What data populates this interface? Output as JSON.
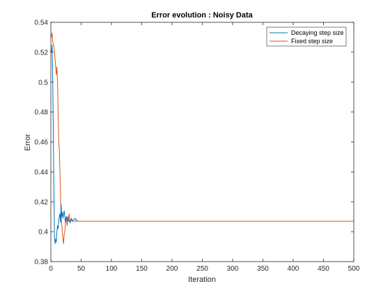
{
  "chart_data": {
    "type": "line",
    "title": "Error evolution : Noisy Data",
    "xlabel": "Iteration",
    "ylabel": "Error",
    "xlim": [
      0,
      500
    ],
    "ylim": [
      0.38,
      0.54
    ],
    "xticks": [
      0,
      50,
      100,
      150,
      200,
      250,
      300,
      350,
      400,
      450,
      500
    ],
    "yticks": [
      0.38,
      0.4,
      0.42,
      0.44,
      0.46,
      0.48,
      0.5,
      0.52,
      0.54
    ],
    "grid": false,
    "legend_position": "top-right",
    "series": [
      {
        "name": "Decaying step size",
        "color": "#0072bd",
        "x": [
          1,
          2,
          3,
          4,
          5,
          6,
          7,
          8,
          9,
          10,
          11,
          12,
          13,
          14,
          15,
          16,
          17,
          18,
          19,
          20,
          22,
          24,
          26,
          28,
          30,
          32,
          34,
          36,
          40,
          42,
          44
        ],
        "y": [
          0.52,
          0.525,
          0.505,
          0.47,
          0.43,
          0.398,
          0.392,
          0.395,
          0.393,
          0.4,
          0.404,
          0.402,
          0.408,
          0.41,
          0.412,
          0.406,
          0.418,
          0.41,
          0.413,
          0.409,
          0.414,
          0.406,
          0.41,
          0.407,
          0.408,
          0.406,
          0.409,
          0.407,
          0.409,
          0.408,
          0.407
        ]
      },
      {
        "name": "Fixed step size",
        "color": "#d95319",
        "x": [
          1,
          2,
          3,
          4,
          5,
          6,
          7,
          8,
          9,
          10,
          11,
          12,
          13,
          14,
          15,
          16,
          17,
          18,
          19,
          20,
          21,
          22,
          23,
          24,
          25,
          26,
          27,
          28,
          29,
          30,
          32,
          34,
          36,
          38,
          40,
          45,
          50,
          100,
          200,
          300,
          400,
          500
        ],
        "y": [
          0.53,
          0.533,
          0.527,
          0.526,
          0.524,
          0.52,
          0.515,
          0.51,
          0.505,
          0.51,
          0.5,
          0.48,
          0.46,
          0.455,
          0.44,
          0.425,
          0.41,
          0.405,
          0.4,
          0.395,
          0.392,
          0.398,
          0.4,
          0.405,
          0.41,
          0.408,
          0.404,
          0.41,
          0.407,
          0.412,
          0.406,
          0.408,
          0.407,
          0.407,
          0.407,
          0.407,
          0.407,
          0.407,
          0.407,
          0.407,
          0.407,
          0.407
        ]
      }
    ]
  }
}
